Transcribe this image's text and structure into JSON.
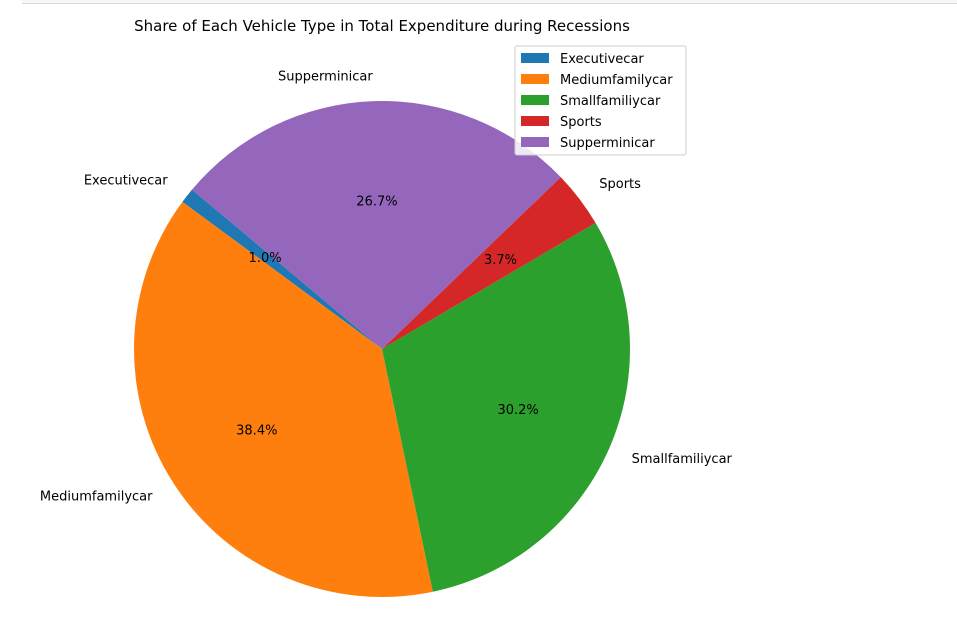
{
  "chart_data": {
    "type": "pie",
    "title": "Share of Each Vehicle Type in Total Expenditure during Recessions",
    "categories": [
      "Executivecar",
      "Mediumfamilycar",
      "Smallfamiliycar",
      "Sports",
      "Supperminicar"
    ],
    "values": [
      1.0,
      38.4,
      30.2,
      3.7,
      26.7
    ],
    "autopct_labels": [
      "1.0%",
      "38.4%",
      "30.2%",
      "3.7%",
      "26.7%"
    ],
    "colors": [
      "#1f77b4",
      "#ff7f0e",
      "#2ca02c",
      "#d62728",
      "#9467bd"
    ],
    "start_angle_deg": 140,
    "direction": "counterclockwise",
    "legend": {
      "placement": "top-right",
      "entries": [
        "Executivecar",
        "Mediumfamilycar",
        "Smallfamiliycar",
        "Sports",
        "Supperminicar"
      ]
    }
  }
}
